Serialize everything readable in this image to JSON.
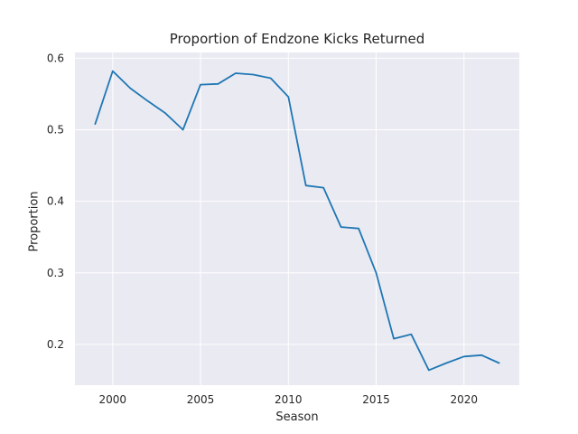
{
  "chart_data": {
    "type": "line",
    "title": "Proportion of Endzone Kicks Returned",
    "xlabel": "Season",
    "ylabel": "Proportion",
    "xlim": [
      1997.85,
      2023.15
    ],
    "ylim": [
      0.143,
      0.608
    ],
    "xticks": [
      2000,
      2005,
      2010,
      2015,
      2020
    ],
    "yticks": [
      0.2,
      0.3,
      0.4,
      0.5,
      0.6
    ],
    "xtick_labels": [
      "2000",
      "2005",
      "2010",
      "2015",
      "2020"
    ],
    "ytick_labels": [
      "0.2",
      "0.3",
      "0.4",
      "0.5",
      "0.6"
    ],
    "grid": true,
    "legend": "none",
    "colors": {
      "background": "#eaeaf2",
      "grid": "#ffffff",
      "line": "#1f77b4"
    },
    "series": [
      {
        "x": [
          1999,
          2000,
          2001,
          2002,
          2003,
          2004,
          2005,
          2006,
          2007,
          2008,
          2009,
          2010,
          2011,
          2012,
          2013,
          2014,
          2015,
          2016,
          2017,
          2018,
          2019,
          2020,
          2021,
          2022
        ],
        "values": [
          0.508,
          0.582,
          0.558,
          0.54,
          0.523,
          0.5,
          0.563,
          0.564,
          0.579,
          0.577,
          0.572,
          0.546,
          0.422,
          0.419,
          0.364,
          0.362,
          0.3,
          0.208,
          0.214,
          0.164,
          0.174,
          0.183,
          0.185,
          0.174
        ]
      }
    ]
  }
}
